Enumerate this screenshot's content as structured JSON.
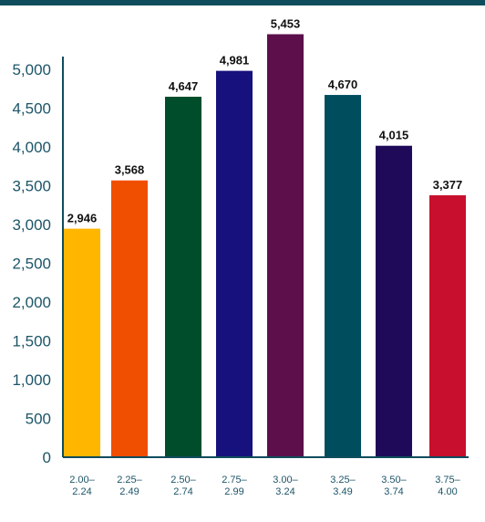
{
  "chart_data": {
    "type": "bar",
    "title": "",
    "xlabel": "",
    "ylabel": "",
    "ylim": [
      0,
      5000
    ],
    "yticks": [
      0,
      500,
      1000,
      1500,
      2000,
      2500,
      3000,
      3500,
      4000,
      4500,
      5000
    ],
    "ytick_labels": [
      "0",
      "500",
      "1,000",
      "1,500",
      "2,000",
      "2,500",
      "3,000",
      "3,500",
      "4,000",
      "4,500",
      "5,000"
    ],
    "grid": false,
    "legend": "none",
    "categories": [
      [
        "2.00–",
        "2.24"
      ],
      [
        "2.25–",
        "2.49"
      ],
      [
        "2.50–",
        "2.74"
      ],
      [
        "2.75–",
        "2.99"
      ],
      [
        "3.00–",
        "3.24"
      ],
      [
        "3.25–",
        "3.49"
      ],
      [
        "3.50–",
        "3.74"
      ],
      [
        "3.75–",
        "4.00"
      ]
    ],
    "values": [
      2946,
      3568,
      4647,
      4981,
      5453,
      4670,
      4015,
      3377
    ],
    "value_labels": [
      "2,946",
      "3,568",
      "4,647",
      "4,981",
      "5,453",
      "4,670",
      "4,015",
      "3,377"
    ],
    "colors": [
      "#FFB600",
      "#F04E00",
      "#004D2B",
      "#17117E",
      "#5C0F4A",
      "#004D5E",
      "#1F0A5A",
      "#C8102E"
    ],
    "axis_color": "#0f4c5c"
  }
}
